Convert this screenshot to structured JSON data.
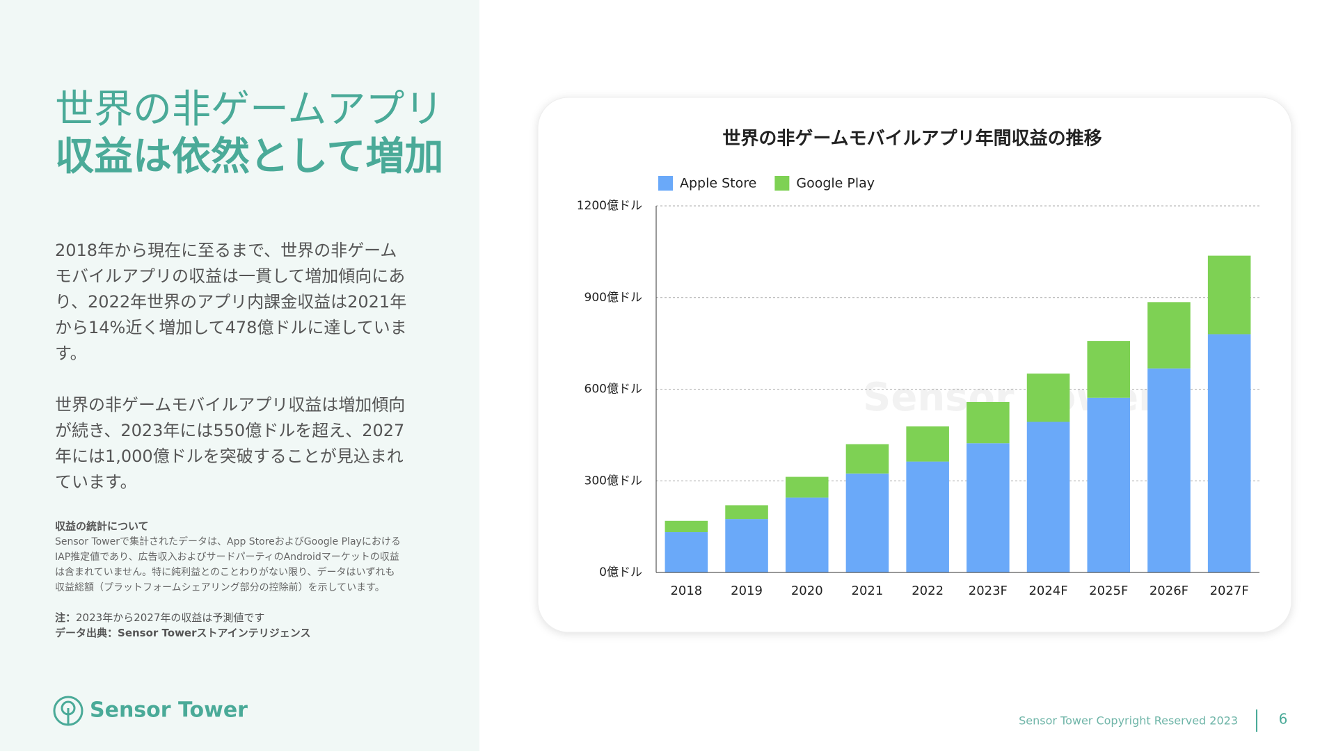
{
  "headline": [
    "世界の非ゲームアプリ",
    "収益は依然として増加"
  ],
  "paragraphs": [
    [
      "2018年から現在に至るまで、世界の非ゲーム",
      "モバイルアプリの収益は一貫して増加傾向にあ",
      "り、2022年世界のアプリ内課金収益は2021年",
      "から14%近く増加して478億ドルに達していま",
      "す。"
    ],
    [
      "世界の非ゲームモバイルアプリ収益は増加傾向",
      "が続き、2023年には550億ドルを超え、2027",
      "年には1,000億ドルを突破することが見込まれ",
      "ています。"
    ]
  ],
  "notes": {
    "heading": "収益の統計について",
    "lines": [
      "Sensor Towerで集計されたデータは、App StoreおよびGoogle Playにおける",
      "IAP推定値であり、広告収入およびサードパーティのAndroidマーケットの収益",
      "は含まれていません。特に純利益とのことわりがない限り、データはいずれも",
      "収益総額（プラットフォームシェアリング部分の控除前）を示しています。"
    ],
    "forecast": {
      "label": "注：",
      "text": "2023年から2027年の収益は予測値です"
    },
    "source": {
      "label": "データ出典：",
      "text": "Sensor Towerストアインテリジェンス"
    }
  },
  "logo": "Sensor Tower",
  "footer": {
    "copyright": "Sensor Tower Copyright Reserved 2023",
    "page": "6"
  },
  "chart_data": {
    "type": "stacked_bar",
    "title": "世界の非ゲームモバイルアプリ年間収益の推移",
    "watermark": "Sensor Tower",
    "categories": [
      "2018",
      "2019",
      "2020",
      "2021",
      "2022",
      "2023F",
      "2024F",
      "2025F",
      "2026F",
      "2027F"
    ],
    "series": [
      {
        "name": "Apple Store",
        "color": "#6aa9f9",
        "values": [
          132,
          175,
          245,
          324,
          363,
          423,
          493,
          572,
          668,
          780
        ]
      },
      {
        "name": "Google Play",
        "color": "#7ed154",
        "values": [
          37,
          45,
          68,
          96,
          115,
          135,
          158,
          186,
          217,
          257
        ]
      }
    ],
    "ylim": [
      0,
      1200
    ],
    "yticks": [
      {
        "value": 0,
        "label": "0億ドル"
      },
      {
        "value": 300,
        "label": "300億ドル"
      },
      {
        "value": 600,
        "label": "600億ドル"
      },
      {
        "value": 900,
        "label": "900億ドル"
      },
      {
        "value": 1200,
        "label": "1200億ドル"
      }
    ],
    "grid": true,
    "legend": "top-left"
  }
}
